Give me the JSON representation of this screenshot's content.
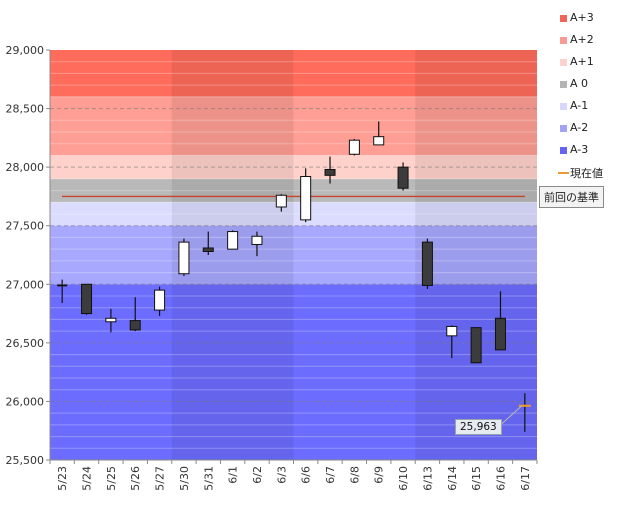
{
  "chart_data": {
    "type": "candlestick",
    "title": "",
    "ylim": [
      25500,
      29000
    ],
    "y_ticks": [
      "25,500",
      "26,000",
      "26,500",
      "27,000",
      "27,500",
      "28,000",
      "28,500",
      "29,000"
    ],
    "y_tick_values": [
      25500,
      26000,
      26500,
      27000,
      27500,
      28000,
      28500,
      29000
    ],
    "categories": [
      "5/23",
      "5/24",
      "5/25",
      "5/26",
      "5/27",
      "5/30",
      "5/31",
      "6/1",
      "6/2",
      "6/3",
      "6/6",
      "6/7",
      "6/8",
      "6/9",
      "6/10",
      "6/13",
      "6/14",
      "6/15",
      "6/16",
      "6/17"
    ],
    "ohlc": [
      {
        "open": 26990,
        "high": 27040,
        "low": 26840,
        "close": 26990
      },
      {
        "open": 27000,
        "high": 27000,
        "low": 26740,
        "close": 26750
      },
      {
        "open": 26680,
        "high": 26790,
        "low": 26590,
        "close": 26710
      },
      {
        "open": 26690,
        "high": 26890,
        "low": 26600,
        "close": 26610
      },
      {
        "open": 26780,
        "high": 26980,
        "low": 26730,
        "close": 26950
      },
      {
        "open": 27090,
        "high": 27390,
        "low": 27070,
        "close": 27360
      },
      {
        "open": 27310,
        "high": 27450,
        "low": 27250,
        "close": 27280
      },
      {
        "open": 27300,
        "high": 27460,
        "low": 27300,
        "close": 27450
      },
      {
        "open": 27340,
        "high": 27450,
        "low": 27240,
        "close": 27410
      },
      {
        "open": 27660,
        "high": 27770,
        "low": 27620,
        "close": 27760
      },
      {
        "open": 27550,
        "high": 27990,
        "low": 27530,
        "close": 27920
      },
      {
        "open": 27980,
        "high": 28090,
        "low": 27860,
        "close": 27930
      },
      {
        "open": 28110,
        "high": 28240,
        "low": 28100,
        "close": 28230
      },
      {
        "open": 28190,
        "high": 28390,
        "low": 28190,
        "close": 28260
      },
      {
        "open": 28000,
        "high": 28040,
        "low": 27800,
        "close": 27820
      },
      {
        "open": 27360,
        "high": 27390,
        "low": 26960,
        "close": 26990
      },
      {
        "open": 26560,
        "high": 26650,
        "low": 26370,
        "close": 26640
      },
      {
        "open": 26630,
        "high": 26630,
        "low": 26330,
        "close": 26330
      },
      {
        "open": 26710,
        "high": 26940,
        "low": 26440,
        "close": 26440
      },
      {
        "open": 25960,
        "high": 26070,
        "low": 25740,
        "close": 25963
      }
    ],
    "bands": [
      {
        "name": "A+3",
        "from": 28600,
        "to": 29000,
        "color": "#ff6c5c"
      },
      {
        "name": "A+2",
        "from": 28100,
        "to": 28600,
        "color": "#ff9e94"
      },
      {
        "name": "A+1",
        "from": 27900,
        "to": 28100,
        "color": "#ffd1cb"
      },
      {
        "name": "A 0",
        "from": 27700,
        "to": 27900,
        "color": "#b9b9b9"
      },
      {
        "name": "A-1",
        "from": 27500,
        "to": 27700,
        "color": "#dcdcff"
      },
      {
        "name": "A-2",
        "from": 27000,
        "to": 27500,
        "color": "#a8a8ff"
      },
      {
        "name": "A-3",
        "from": 25500,
        "to": 27000,
        "color": "#6c6cff"
      }
    ],
    "week_group_shading": [
      false,
      true,
      false,
      true
    ],
    "reference_line": {
      "label": "前回の基準",
      "value": 27750,
      "color": "#c8442e"
    },
    "last_value": {
      "label": "25,963",
      "value": 25963
    },
    "legend": [
      {
        "name": "A+3",
        "color": "#f0665a",
        "kind": "swatch"
      },
      {
        "name": "A+2",
        "color": "#f79b94",
        "kind": "swatch"
      },
      {
        "name": "A+1",
        "color": "#fbd2ce",
        "kind": "swatch"
      },
      {
        "name": "A 0",
        "color": "#b4b4b4",
        "kind": "swatch"
      },
      {
        "name": "A-1",
        "color": "#d7d7fb",
        "kind": "swatch"
      },
      {
        "name": "A-2",
        "color": "#a3a3f5",
        "kind": "swatch"
      },
      {
        "name": "A-3",
        "color": "#6464f0",
        "kind": "swatch"
      },
      {
        "name": "現在値",
        "color": "#e89a33",
        "kind": "line"
      }
    ],
    "up_color": "#ffffff",
    "down_color": "#3c3c3c",
    "xlabel": "",
    "ylabel": ""
  }
}
